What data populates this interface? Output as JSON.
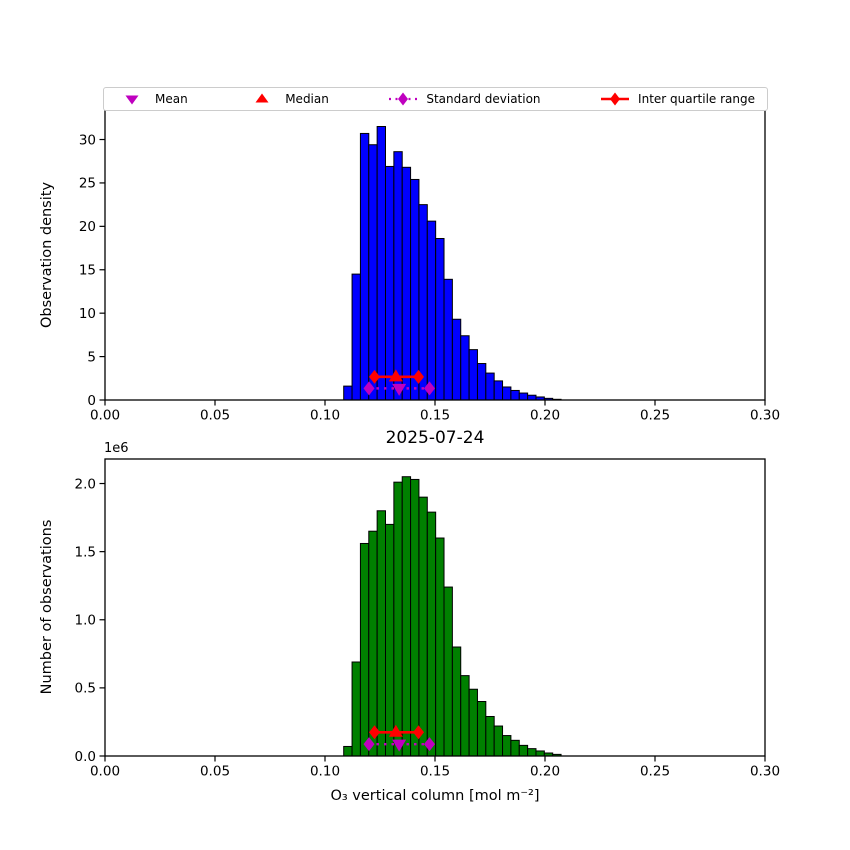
{
  "figure": {
    "title": "2025-07-24",
    "xlabel": "O₃ vertical column [mol m⁻²]",
    "background": "#ffffff"
  },
  "legend": {
    "items": [
      {
        "label": "Mean",
        "marker": "triangle-down",
        "color": "#bf00bf"
      },
      {
        "label": "Median",
        "marker": "triangle-up",
        "color": "#ff0000"
      },
      {
        "label": "Standard deviation",
        "marker": "diamond-dotted-line",
        "color": "#bf00bf"
      },
      {
        "label": "Inter quartile range",
        "marker": "diamond-solid-line",
        "color": "#ff0000"
      }
    ]
  },
  "stats": {
    "mean": 0.1337,
    "median": 0.1322,
    "std_low": 0.12,
    "std_high": 0.1475,
    "iqr_low": 0.1225,
    "iqr_high": 0.1425
  },
  "chart_data": [
    {
      "type": "bar",
      "kind": "histogram",
      "ylabel": "Observation density",
      "bar_color": "#0000ff",
      "edge_color": "#000000",
      "bin_start": 0.1085,
      "bin_width": 0.0038,
      "values": [
        1.6,
        14.5,
        30.7,
        29.4,
        31.5,
        26.9,
        28.6,
        26.8,
        25.4,
        22.5,
        20.6,
        18.6,
        13.9,
        9.3,
        7.4,
        5.8,
        4.2,
        3.1,
        2.2,
        1.5,
        1.1,
        0.8,
        0.55,
        0.35,
        0.19,
        0.08
      ],
      "xlim": [
        0.0,
        0.3
      ],
      "ylim": [
        0,
        33.4
      ],
      "xticks": [
        0.0,
        0.05,
        0.1,
        0.15,
        0.2,
        0.25,
        0.3
      ],
      "xtick_labels": [
        "0.00",
        "0.05",
        "0.10",
        "0.15",
        "0.20",
        "0.25",
        "0.30"
      ],
      "yticks": [
        0,
        5,
        10,
        15,
        20,
        25,
        30
      ],
      "ytick_labels": [
        "0",
        "5",
        "10",
        "15",
        "20",
        "25",
        "30"
      ],
      "marker_rows": {
        "iqr_y": 2.67,
        "std_y": 1.34
      },
      "grid": false,
      "legend_position": "above-axes"
    },
    {
      "type": "bar",
      "kind": "histogram",
      "title": "2025-07-24",
      "ylabel": "Number of observations",
      "offset_label": "1e6",
      "bar_color": "#008000",
      "edge_color": "#000000",
      "bin_start": 0.1085,
      "bin_width": 0.0038,
      "values": [
        70000,
        690000,
        1560000,
        1650000,
        1800000,
        1700000,
        2010000,
        2050000,
        2030000,
        1900000,
        1790000,
        1600000,
        1240000,
        800000,
        590000,
        490000,
        400000,
        290000,
        220000,
        150000,
        115000,
        78000,
        54000,
        37000,
        22000,
        12000
      ],
      "xlim": [
        0.0,
        0.3
      ],
      "ylim": [
        0,
        2180000
      ],
      "xticks": [
        0.0,
        0.05,
        0.1,
        0.15,
        0.2,
        0.25,
        0.3
      ],
      "xtick_labels": [
        "0.00",
        "0.05",
        "0.10",
        "0.15",
        "0.20",
        "0.25",
        "0.30"
      ],
      "yticks": [
        0,
        500000,
        1000000,
        1500000,
        2000000
      ],
      "ytick_labels": [
        "0.0",
        "0.5",
        "1.0",
        "1.5",
        "2.0"
      ],
      "marker_rows": {
        "iqr_y": 174000,
        "std_y": 87000
      },
      "grid": false
    }
  ]
}
